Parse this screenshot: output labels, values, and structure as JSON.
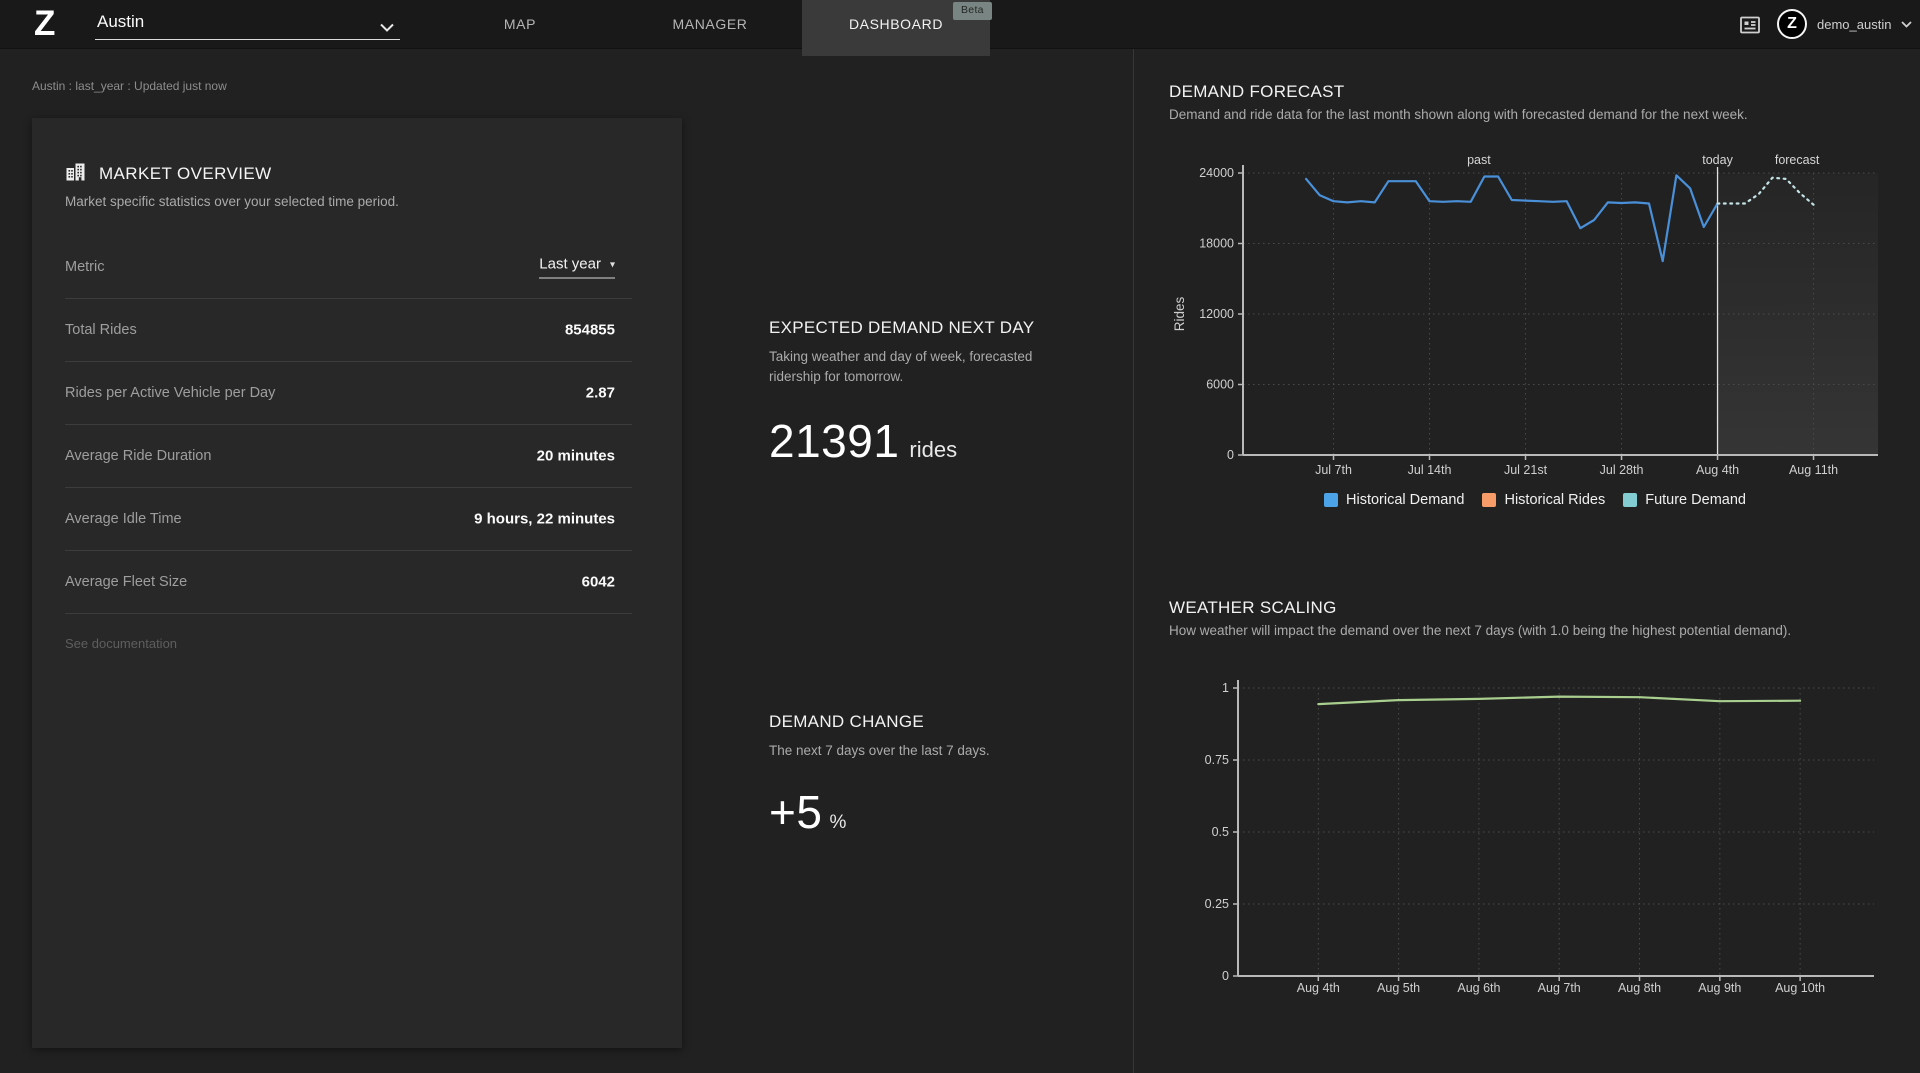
{
  "topbar": {
    "logo": "Z",
    "market_selector": {
      "value": "Austin"
    },
    "tabs": [
      {
        "label": "MAP",
        "active": false
      },
      {
        "label": "MANAGER",
        "active": false
      },
      {
        "label": "DASHBOARD",
        "active": true,
        "badge": "Beta"
      }
    ],
    "user": {
      "name": "demo_austin",
      "avatar_letter": "Z"
    }
  },
  "breadcrumb": "Austin : last_year : Updated just now",
  "market_overview": {
    "title": "MARKET OVERVIEW",
    "subtitle": "Market specific statistics over your selected time period.",
    "metric_row": {
      "label": "Metric",
      "value": "Last year"
    },
    "rows": [
      {
        "label": "Total Rides",
        "value": "854855"
      },
      {
        "label": "Rides per Active Vehicle per Day",
        "value": "2.87"
      },
      {
        "label": "Average Ride Duration",
        "value": "20 minutes"
      },
      {
        "label": "Average Idle Time",
        "value": "9 hours, 22 minutes"
      },
      {
        "label": "Average Fleet Size",
        "value": "6042"
      }
    ],
    "footer_link": "See documentation"
  },
  "expected_demand": {
    "title": "EXPECTED DEMAND NEXT DAY",
    "subtitle": "Taking weather and day of week, forecasted ridership for tomorrow.",
    "value": "21391",
    "unit": "rides"
  },
  "demand_change": {
    "title": "DEMAND CHANGE",
    "subtitle": "The next 7 days over the last 7 days.",
    "value": "+5",
    "unit": "%"
  },
  "chart_data": [
    {
      "id": "demand-forecast",
      "type": "line",
      "title": "DEMAND FORECAST",
      "subtitle": "Demand and ride data for the last month shown along with forecasted demand for the next week.",
      "ylabel": "Rides",
      "ylim": [
        0,
        24000
      ],
      "yticks": [
        0,
        6000,
        12000,
        18000,
        24000
      ],
      "xlim": [
        0.4,
        46.7
      ],
      "xticks": [
        {
          "label": "Jul 7th",
          "x": 7
        },
        {
          "label": "Jul 14th",
          "x": 14
        },
        {
          "label": "Jul 21st",
          "x": 21
        },
        {
          "label": "Jul 28th",
          "x": 28
        },
        {
          "label": "Aug 4th",
          "x": 35
        },
        {
          "label": "Aug 11th",
          "x": 42
        }
      ],
      "grid": "dashed",
      "annotations": [
        {
          "label": "past",
          "x": 17.6
        },
        {
          "label": "today",
          "x": 35
        },
        {
          "label": "forecast",
          "x": 40.8
        }
      ],
      "today_line_x": 35,
      "forecast_region": {
        "from_x": 35
      },
      "legend_position": "bottom",
      "legend": [
        {
          "label": "Historical Demand",
          "color": "#4da3e8"
        },
        {
          "label": "Historical Rides",
          "color": "#f79c68"
        },
        {
          "label": "Future Demand",
          "color": "#82ccd2"
        }
      ],
      "series": [
        {
          "name": "Historical Demand",
          "style": "solid",
          "color": "#4a90d9",
          "x": [
            5,
            6,
            7,
            8,
            9,
            10,
            11,
            12,
            13,
            14,
            15,
            16,
            17,
            18,
            19,
            20,
            21,
            22,
            23,
            24,
            25,
            26,
            27,
            28,
            29,
            30,
            31,
            32,
            33,
            34,
            35
          ],
          "values": [
            23500,
            22100,
            21600,
            21500,
            21600,
            21500,
            23300,
            23300,
            23300,
            21600,
            21550,
            21600,
            21550,
            23700,
            23700,
            21700,
            21650,
            21600,
            21550,
            21600,
            19300,
            20000,
            21500,
            21450,
            21500,
            21400,
            16500,
            23800,
            22700,
            19400,
            21400
          ]
        },
        {
          "name": "Future Demand",
          "style": "dotted",
          "color": "#c3e2e4",
          "x": [
            35,
            36,
            37,
            38,
            39,
            40,
            41,
            42
          ],
          "values": [
            21400,
            21400,
            21400,
            22200,
            23600,
            23500,
            22300,
            21300
          ]
        }
      ]
    },
    {
      "id": "weather-scaling",
      "type": "line",
      "title": "WEATHER SCALING",
      "subtitle": "How weather will impact the demand over the next 7 days (with 1.0 being the highest potential demand).",
      "ylabel": "",
      "ylim": [
        0,
        1
      ],
      "yticks": [
        0,
        0.25,
        0.5,
        0.75,
        1
      ],
      "xlim": [
        -1,
        6.92
      ],
      "xticks": [
        {
          "label": "Aug 4th",
          "x": 0
        },
        {
          "label": "Aug 5th",
          "x": 1
        },
        {
          "label": "Aug 6th",
          "x": 2
        },
        {
          "label": "Aug 7th",
          "x": 3
        },
        {
          "label": "Aug 8th",
          "x": 4
        },
        {
          "label": "Aug 9th",
          "x": 5
        },
        {
          "label": "Aug 10th",
          "x": 6
        }
      ],
      "grid": "dashed",
      "series": [
        {
          "name": "Weather Scale",
          "style": "solid",
          "color": "#a9cf8f",
          "x": [
            0,
            1,
            2,
            3,
            4,
            5,
            6
          ],
          "values": [
            0.944,
            0.958,
            0.962,
            0.97,
            0.968,
            0.954,
            0.956
          ]
        }
      ]
    }
  ]
}
